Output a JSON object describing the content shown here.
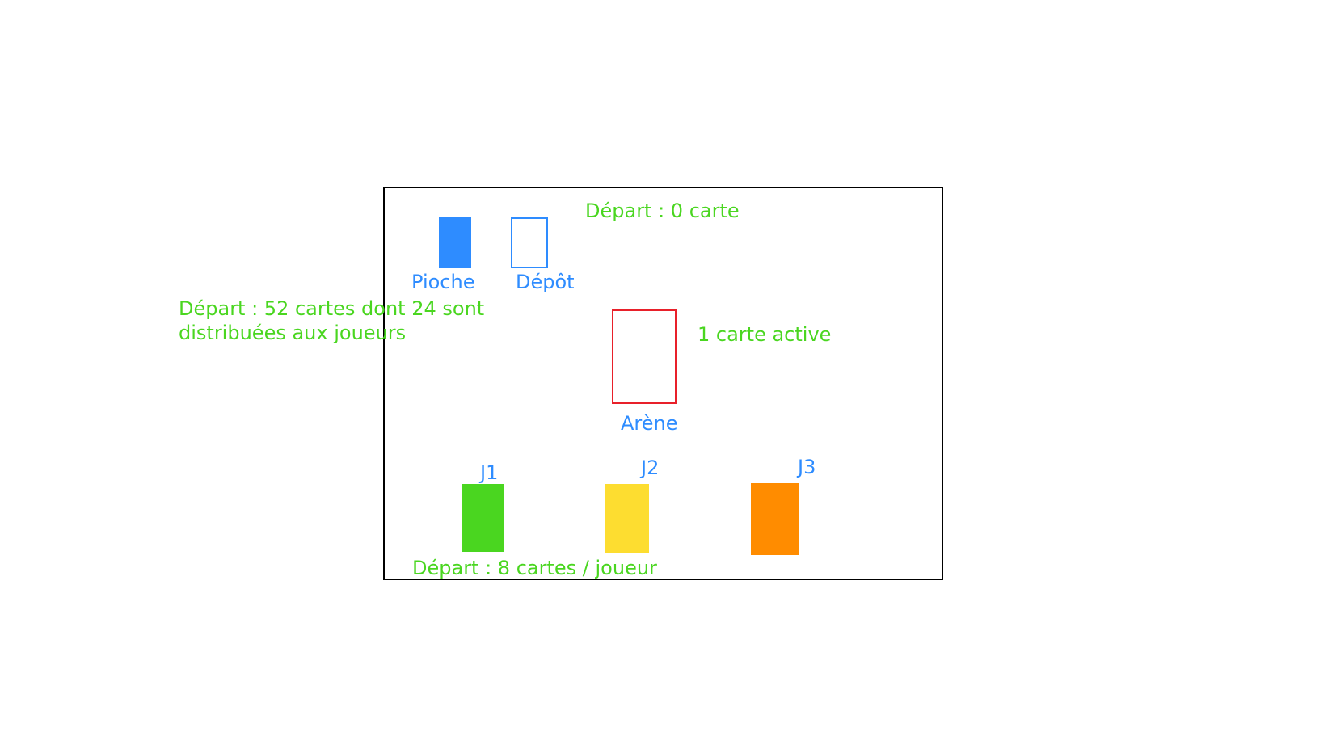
{
  "board": {
    "pioche": {
      "label": "Pioche",
      "color": "#2e8cff"
    },
    "depot": {
      "label": "Dépôt",
      "color": "#2e8cff"
    },
    "arene": {
      "label": "Arène",
      "color": "#e8202a"
    },
    "players": [
      {
        "label": "J1",
        "color": "#4ad620"
      },
      {
        "label": "J2",
        "color": "#fddd30"
      },
      {
        "label": "J3",
        "color": "#ff8c00"
      }
    ]
  },
  "notes": {
    "depot_start": "Départ : 0 carte",
    "pioche_start_line1": "Départ : 52 cartes dont 24 sont",
    "pioche_start_line2": "distribuées aux joueurs",
    "arene_active": "1 carte active",
    "players_start": "Départ : 8 cartes / joueur"
  },
  "colors": {
    "label_blue": "#2e8cff",
    "note_green": "#4ad620",
    "border": "#000000"
  }
}
